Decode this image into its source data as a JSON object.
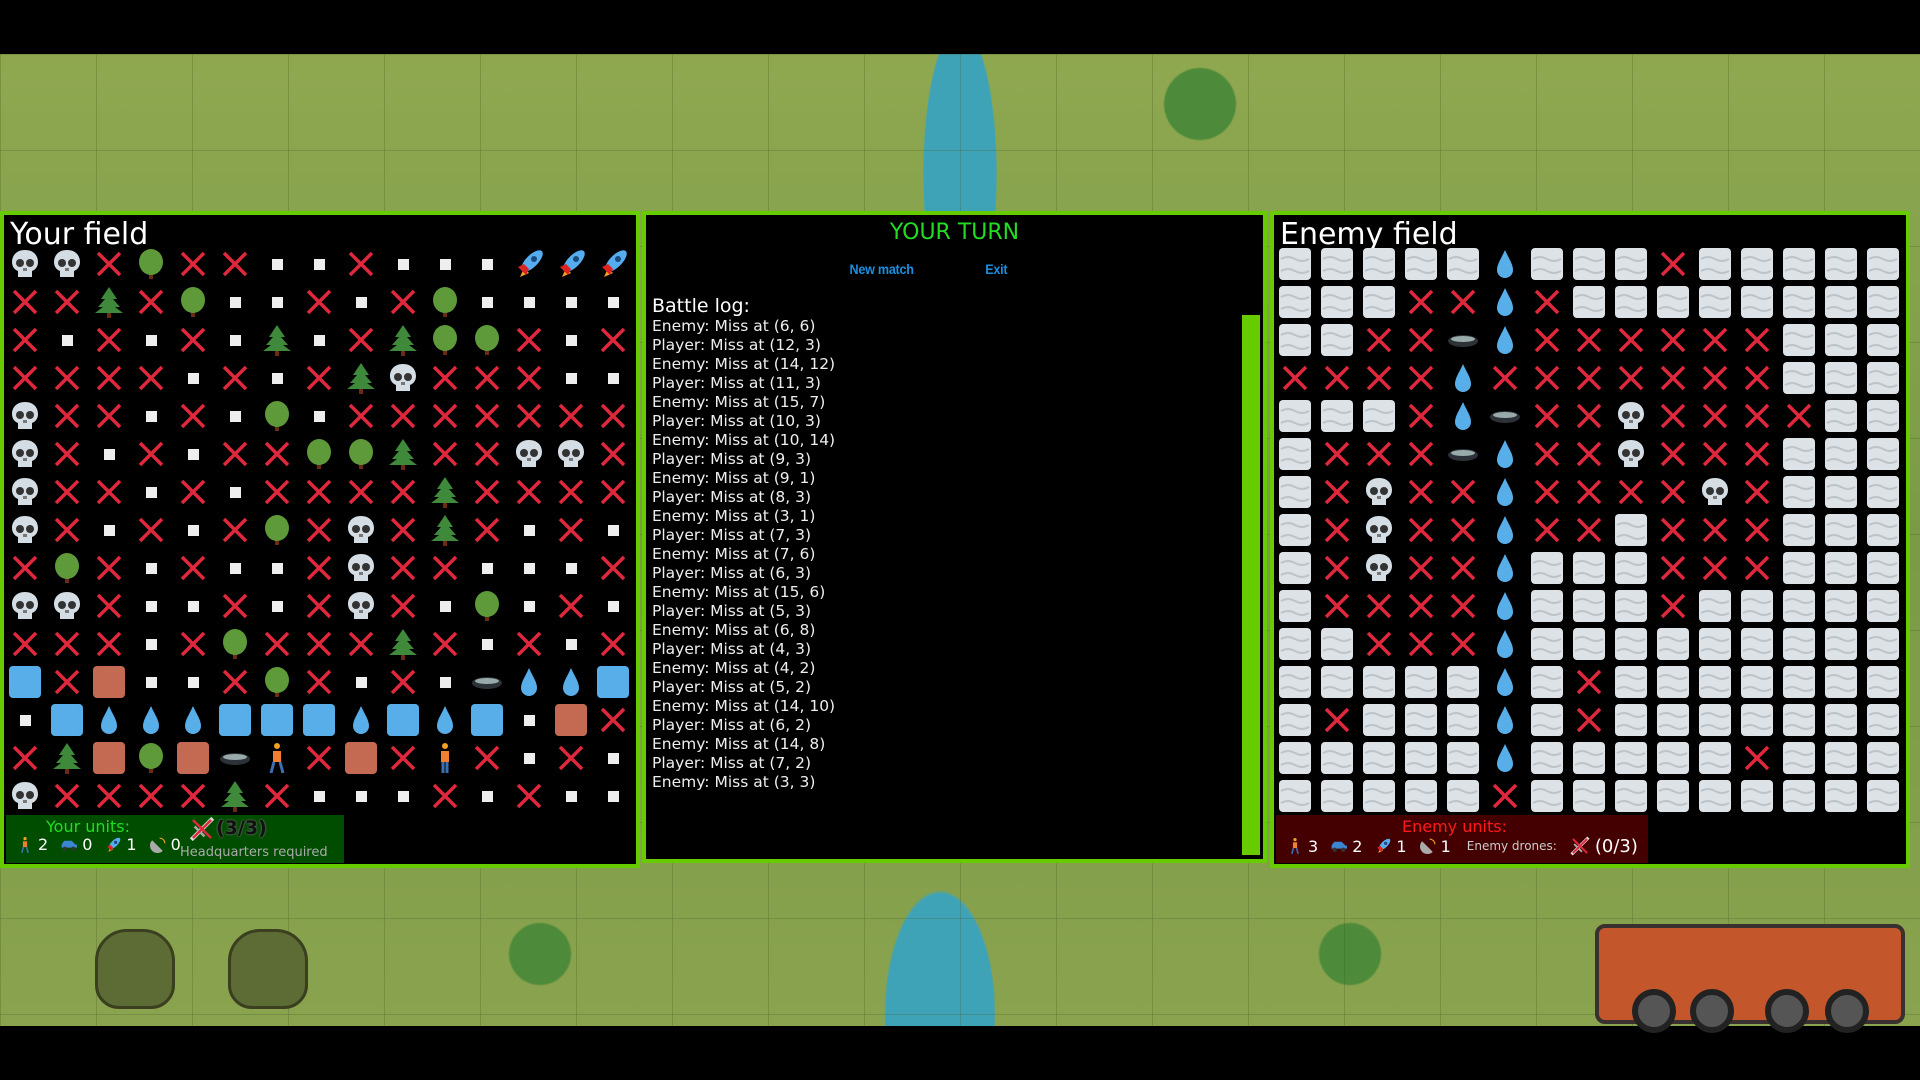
{
  "colors": {
    "accent": "#66cc00",
    "turn": "#22dd22",
    "link": "#1a8fe0",
    "miss": "#e0283c",
    "your_units_bg": "#004d00",
    "enemy_units_bg": "#440000",
    "enemy_units_title": "#ff1a1a"
  },
  "legend": {
    "S": "skull",
    "X": "miss-cross",
    "D": "deciduous-tree",
    "P": "pine-tree",
    "R": "rocket",
    "B": "blue-block",
    "O": "brown-block",
    "W": "water-drop",
    "H": "hole",
    "M": "walking-man",
    "N": "standing-man",
    "C": "cloud-fog",
    ".": "empty-dot"
  },
  "your_field": {
    "title": "Your field",
    "rows": [
      "S S X D X X . . X . . . R R R",
      "X X P X D . . X . X D . . . .",
      "X . X . X . P . X P D D X . X",
      "X X X X . X . X P S X X X . .",
      "S X X . X . D . X X X X X X X",
      "S X . X . X X D D P X X S S X",
      "S X X . X . X X X X P X X X X",
      "S X . X . X D X S X P X . X .",
      "X D X . X . . X S X X . . . X",
      "S S X . . X . X S X . D . X .",
      "X X X . X D X X X P X . X . X",
      "B X O . . X D X . X . H W W B",
      ". B W W W B B B W B W B . O X",
      "X P O D O H M X O X N X . X .",
      "S X X X X P X . . . X . X . ."
    ],
    "units": {
      "title": "Your units:",
      "soldiers": "2",
      "vehicles": "0",
      "rockets": "1",
      "radars": "0",
      "drones": "(3/3)",
      "drone_note": "Headquarters required"
    }
  },
  "enemy_field": {
    "title": "Enemy field",
    "rows": [
      "C C C C C W C C C X C C C C C",
      "C C C X X W X C C C C C C C C",
      "C C X X H W X X X X X X C C C",
      "X X X X W X X X X X X X C C C",
      "C C C X W H X X S X X X X C C",
      "C X X X H W X X S X X X C C C",
      "C X S X X W X X X X S X C C C",
      "C X S X X W X X C X X X C C C",
      "C X S X X W C C C X X X C C C",
      "C X X X X W C C C X C C C C C",
      "C C X X X W C C C C C C C C C",
      "C C C C C W C X C C C C C C C",
      "C X C C C W C X C C C C C C C",
      "C C C C C W C C C C C X C C C",
      "C C C C C X C C C C C C C C C"
    ],
    "units": {
      "title": "Enemy units:",
      "soldiers": "3",
      "vehicles": "2",
      "rockets": "1",
      "radars": "1",
      "drones_label": "Enemy drones:",
      "drones": "(0/3)"
    }
  },
  "center": {
    "turn": "YOUR TURN",
    "new_match": "New match",
    "exit": "Exit",
    "log_title": "Battle log:",
    "log": [
      "Enemy: Miss at (6, 6)",
      "Player: Miss at (12, 3)",
      "Enemy: Miss at (14, 12)",
      "Player: Miss at (11, 3)",
      "Enemy: Miss at (15, 7)",
      "Player: Miss at (10, 3)",
      "Enemy: Miss at (10, 14)",
      "Player: Miss at (9, 3)",
      "Enemy: Miss at (9, 1)",
      "Player: Miss at (8, 3)",
      "Enemy: Miss at (3, 1)",
      "Player: Miss at (7, 3)",
      "Enemy: Miss at (7, 6)",
      "Player: Miss at (6, 3)",
      "Enemy: Miss at (15, 6)",
      "Player: Miss at (5, 3)",
      "Enemy: Miss at (6, 8)",
      "Player: Miss at (4, 3)",
      "Enemy: Miss at (4, 2)",
      "Player: Miss at (5, 2)",
      "Enemy: Miss at (14, 10)",
      "Player: Miss at (6, 2)",
      "Enemy: Miss at (14, 8)",
      "Player: Miss at (7, 2)",
      "Enemy: Miss at (3, 3)"
    ]
  }
}
